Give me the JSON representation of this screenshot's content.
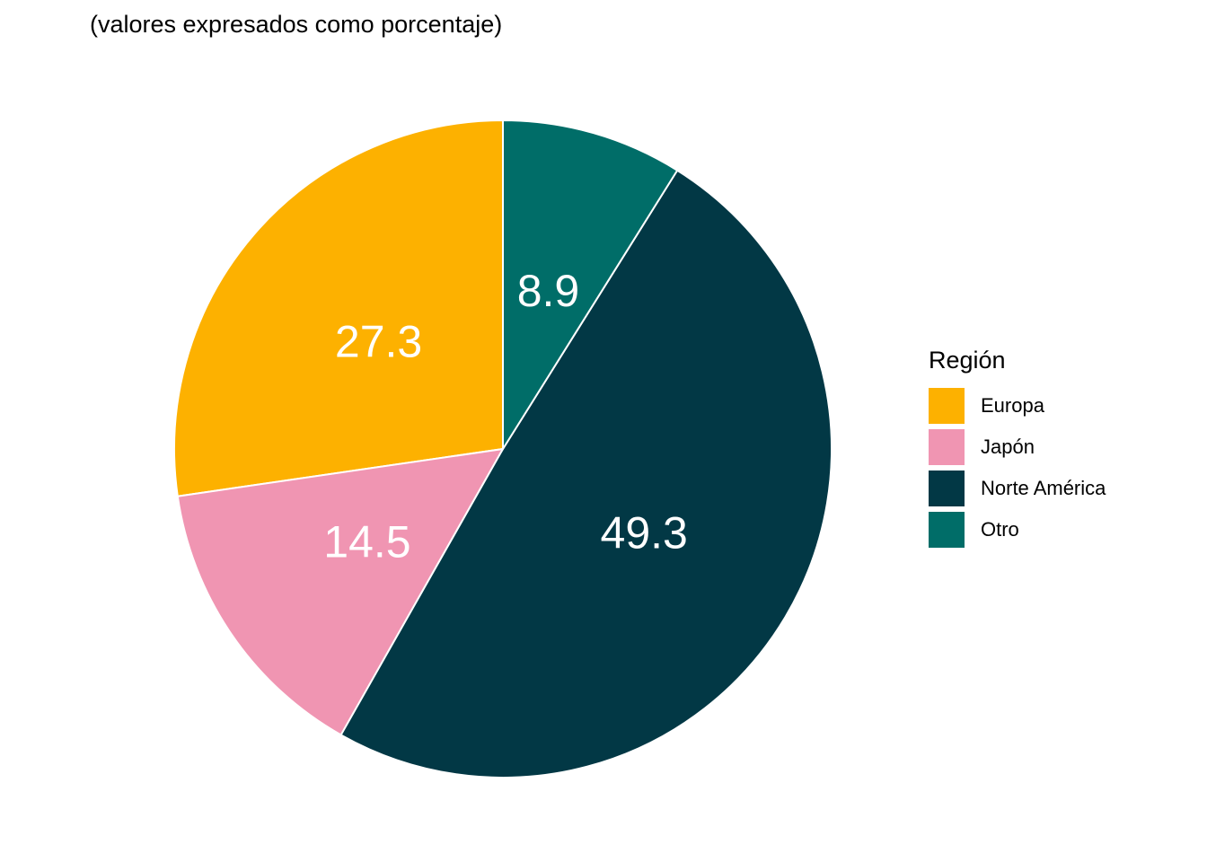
{
  "subtitle": "(valores expresados como porcentaje)",
  "legend": {
    "title": "Región"
  },
  "chart_data": {
    "type": "pie",
    "title": "",
    "subtitle": "(valores expresados como porcentaje)",
    "legend_title": "Región",
    "legend_position": "right",
    "start": "12 o'clock, counter-clockwise",
    "slices": [
      {
        "label": "Europa",
        "value": 27.3,
        "color": "#FDB100"
      },
      {
        "label": "Japón",
        "value": 14.5,
        "color": "#F095B2"
      },
      {
        "label": "Norte América",
        "value": 49.3,
        "color": "#023845"
      },
      {
        "label": "Otro",
        "value": 8.9,
        "color": "#006D68"
      }
    ]
  }
}
